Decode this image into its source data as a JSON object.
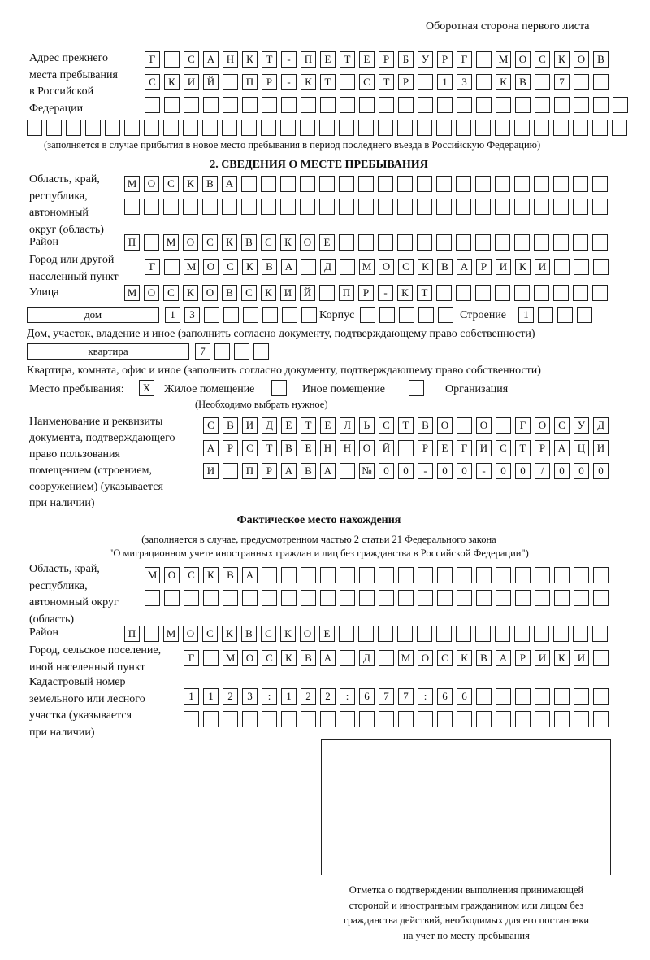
{
  "header": {
    "side_note": "Оборотная сторона первого листа"
  },
  "previous_address": {
    "label": "Адрес прежнего\nместа пребывания\nв Российской\nФедерации",
    "rows": [
      [
        "Г",
        " ",
        "С",
        "А",
        "Н",
        "К",
        "Т",
        "-",
        "П",
        "Е",
        "Т",
        "Е",
        "Р",
        "Б",
        "У",
        "Р",
        "Г",
        " ",
        "М",
        "О",
        "С",
        "К",
        "О",
        "В"
      ],
      [
        "С",
        "К",
        "И",
        "Й",
        " ",
        "П",
        "Р",
        "-",
        "К",
        "Т",
        " ",
        "С",
        "Т",
        "Р",
        " ",
        "1",
        "3",
        " ",
        "К",
        "В",
        " ",
        "7",
        " ",
        " "
      ],
      [
        " ",
        " ",
        " ",
        " ",
        " ",
        " ",
        " ",
        " ",
        " ",
        " ",
        " ",
        " ",
        " ",
        " ",
        " ",
        " ",
        " ",
        " ",
        " ",
        " ",
        " ",
        " ",
        " ",
        " ",
        " "
      ],
      [
        " ",
        " ",
        " ",
        " ",
        " ",
        " ",
        " ",
        " ",
        " ",
        " ",
        " ",
        " ",
        " ",
        " ",
        " ",
        " ",
        " ",
        " ",
        " ",
        " ",
        " ",
        " ",
        " ",
        " ",
        " ",
        " ",
        " ",
        " ",
        " ",
        " ",
        " "
      ]
    ],
    "note": "(заполняется в случае прибытия в новое место пребывания в период последнего въезда в Российскую Федерацию)"
  },
  "section2": {
    "title": "2. СВЕДЕНИЯ О МЕСТЕ ПРЕБЫВАНИЯ",
    "region_label": "Область, край,\nреспублика,\nавтономный\nокруг (область)",
    "region_rows": [
      [
        "М",
        "О",
        "С",
        "К",
        "В",
        "А",
        " ",
        " ",
        " ",
        " ",
        " ",
        " ",
        " ",
        " ",
        " ",
        " ",
        " ",
        " ",
        " ",
        " ",
        " ",
        " ",
        " ",
        " ",
        " "
      ],
      [
        " ",
        " ",
        " ",
        " ",
        " ",
        " ",
        " ",
        " ",
        " ",
        " ",
        " ",
        " ",
        " ",
        " ",
        " ",
        " ",
        " ",
        " ",
        " ",
        " ",
        " ",
        " ",
        " ",
        " ",
        " "
      ]
    ],
    "district_label": "Район",
    "district_row": [
      "П",
      " ",
      "М",
      "О",
      "С",
      "К",
      "В",
      "С",
      "К",
      "О",
      "Е",
      " ",
      " ",
      " ",
      " ",
      " ",
      " ",
      " ",
      " ",
      " ",
      " ",
      " ",
      " ",
      " ",
      " "
    ],
    "city_label": "Город или другой\nнаселенный пункт",
    "city_row": [
      "Г",
      " ",
      "М",
      "О",
      "С",
      "К",
      "В",
      "А",
      " ",
      "Д",
      " ",
      "М",
      "О",
      "С",
      "К",
      "В",
      "А",
      "Р",
      "И",
      "К",
      "И",
      " ",
      " ",
      " "
    ],
    "street_label": "Улица",
    "street_row": [
      "М",
      "О",
      "С",
      "К",
      "О",
      "В",
      "С",
      "К",
      "И",
      "Й",
      " ",
      "П",
      "Р",
      "-",
      "К",
      "Т",
      " ",
      " ",
      " ",
      " ",
      " ",
      " ",
      " ",
      " ",
      " "
    ],
    "house_type": "дом",
    "house_cells": [
      "1",
      "3",
      " ",
      " ",
      " ",
      " ",
      " ",
      " "
    ],
    "korpus_label": "Корпус",
    "korpus_cells": [
      " ",
      " ",
      " ",
      " ",
      " "
    ],
    "building_label": "Строение",
    "building_cells": [
      "1",
      " ",
      " ",
      " "
    ],
    "house_note": "Дом, участок, владение и иное (заполнить согласно документу, подтверждающему право собственности)",
    "flat_type": "квартира",
    "flat_cells": [
      "7",
      " ",
      " ",
      " "
    ],
    "flat_note": "Квартира, комната, офис и иное (заполнить согласно документу, подтверждающему право собственности)",
    "stay_label": "Место пребывания:",
    "stay_options": [
      {
        "label": "Жилое помещение",
        "mark": "X"
      },
      {
        "label": "Иное помещение",
        "mark": ""
      },
      {
        "label": "Организация",
        "mark": ""
      }
    ],
    "stay_note": "(Необходимо выбрать нужное)",
    "doc_label": "Наименование и реквизиты\nдокумента, подтверждающего\nправо пользования\nпомещением (строением,\nсооружением) (указывается\nпри наличии)",
    "doc_rows": [
      [
        "С",
        "В",
        "И",
        "Д",
        "Е",
        "Т",
        "Е",
        "Л",
        "Ь",
        "С",
        "Т",
        "В",
        "О",
        " ",
        "О",
        " ",
        "Г",
        "О",
        "С",
        "У",
        "Д"
      ],
      [
        "А",
        "Р",
        "С",
        "Т",
        "В",
        "Е",
        "Н",
        "Н",
        "О",
        "Й",
        " ",
        "Р",
        "Е",
        "Г",
        "И",
        "С",
        "Т",
        "Р",
        "А",
        "Ц",
        "И"
      ],
      [
        "И",
        " ",
        "П",
        "Р",
        "А",
        "В",
        "А",
        " ",
        "№",
        "0",
        "0",
        "-",
        "0",
        "0",
        "-",
        "0",
        "0",
        "/",
        "0",
        "0",
        "0"
      ]
    ]
  },
  "actual": {
    "title": "Фактическое место нахождения",
    "note1": "(заполняется в случае, предусмотренном частью 2 статьи 21 Федерального закона",
    "note2": "\"О миграционном учете иностранных граждан и лиц без гражданства в Российской Федерации\")",
    "region_label": "Область, край,\nреспублика,\nавтономный округ\n(область)",
    "region_rows": [
      [
        "М",
        "О",
        "С",
        "К",
        "В",
        "А",
        " ",
        " ",
        " ",
        " ",
        " ",
        " ",
        " ",
        " ",
        " ",
        " ",
        " ",
        " ",
        " ",
        " ",
        " ",
        " ",
        " ",
        " "
      ],
      [
        " ",
        " ",
        " ",
        " ",
        " ",
        " ",
        " ",
        " ",
        " ",
        " ",
        " ",
        " ",
        " ",
        " ",
        " ",
        " ",
        " ",
        " ",
        " ",
        " ",
        " ",
        " ",
        " ",
        " "
      ]
    ],
    "district_label": "Район",
    "district_row": [
      "П",
      " ",
      "М",
      "О",
      "С",
      "К",
      "В",
      "С",
      "К",
      "О",
      "Е",
      " ",
      " ",
      " ",
      " ",
      " ",
      " ",
      " ",
      " ",
      " ",
      " ",
      " ",
      " ",
      " ",
      " "
    ],
    "city_label": "Город, сельское поселение,\nиной населенный пункт",
    "city_row": [
      "Г",
      " ",
      "М",
      "О",
      "С",
      "К",
      "В",
      "А",
      " ",
      "Д",
      " ",
      "М",
      "О",
      "С",
      "К",
      "В",
      "А",
      "Р",
      "И",
      "К",
      "И",
      " "
    ],
    "cadastral_label": "Кадастровый номер\nземельного или лесного\nучастка (указывается\nпри наличии)",
    "cadastral_rows": [
      [
        "1",
        "1",
        "2",
        "3",
        ":",
        "1",
        "2",
        "2",
        ":",
        "6",
        "7",
        "7",
        ":",
        "6",
        "6",
        " ",
        " ",
        " ",
        " ",
        " ",
        " ",
        " "
      ],
      [
        " ",
        " ",
        " ",
        " ",
        " ",
        " ",
        " ",
        " ",
        " ",
        " ",
        " ",
        " ",
        " ",
        " ",
        " ",
        " ",
        " ",
        " ",
        " ",
        " ",
        " ",
        " "
      ]
    ],
    "stamp_caption": "Отметка о подтверждении выполнения принимающей\nстороной и иностранным гражданином или лицом без\nгражданства действий, необходимых для его постановки\nна учет по месту пребывания"
  }
}
